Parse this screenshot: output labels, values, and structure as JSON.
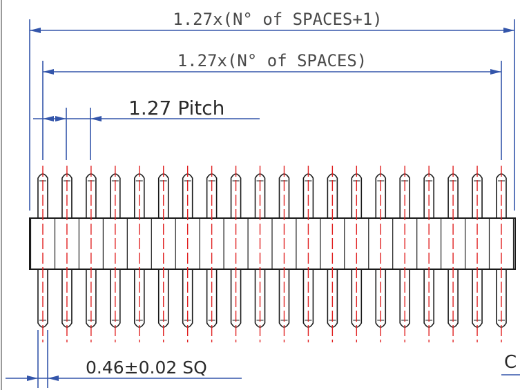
{
  "labels": {
    "overall_length": "1.27x(N° of SPACES+1)",
    "span_length": "1.27x(N° of SPACES)",
    "pitch": "1.27 Pitch",
    "pin_size": "0.46±0.02 SQ",
    "edge_label": "C"
  },
  "pin_count": 20,
  "colors": {
    "outline": "#1a1a1a",
    "dimension": "#3355aa",
    "centerline": "#e02020",
    "frame": "#9a9a9a"
  }
}
